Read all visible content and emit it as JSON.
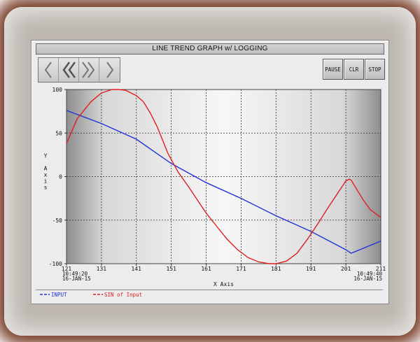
{
  "window": {
    "title": "LINE TREND GRAPH w/ LOGGING"
  },
  "nav": {
    "buttons": [
      {
        "icon": "chevron-left-icon"
      },
      {
        "icon": "double-chevron-left-icon"
      },
      {
        "icon": "double-chevron-right-icon"
      },
      {
        "icon": "chevron-right-icon"
      }
    ]
  },
  "controls": {
    "pause": "PAUSE",
    "clear": "CLR",
    "stop": "STOP"
  },
  "chart_data": {
    "type": "line",
    "xlabel": "X Axis",
    "ylabel": "Y Axis",
    "xlim": [
      121,
      211
    ],
    "ylim": [
      -100,
      100
    ],
    "x_ticks": [
      "121",
      "131",
      "141",
      "151",
      "161",
      "171",
      "181",
      "191",
      "201",
      "211"
    ],
    "y_ticks": [
      "100",
      "50",
      "0",
      "-50",
      "-100"
    ],
    "x_start_stamp": {
      "time": "10:49:20",
      "date": "16-JAN-15"
    },
    "x_end_stamp": {
      "time": "10:49:40",
      "date": "16-JAN-15"
    },
    "grid": true,
    "legend_position": "bottom-left",
    "series": [
      {
        "name": "INPUT",
        "color": "#2233d6",
        "x": [
          121,
          131,
          141,
          151,
          161,
          171,
          181,
          191,
          201,
          202.5,
          211
        ],
        "y": [
          76,
          61,
          43,
          15,
          -7,
          -25,
          -45,
          -63,
          -84,
          -88,
          -74
        ]
      },
      {
        "name": "SIN of Input",
        "color": "#e02020",
        "x": [
          121,
          124,
          128,
          131,
          134,
          136,
          138,
          141,
          143,
          145,
          147,
          150,
          153,
          156,
          159,
          161,
          164,
          167,
          170,
          173,
          176,
          179,
          181,
          184,
          187,
          190,
          193,
          196,
          199,
          201,
          202,
          202.5,
          204,
          206,
          208,
          211
        ],
        "y": [
          38,
          66,
          86,
          96,
          100,
          100,
          99,
          93,
          86,
          73,
          57,
          27,
          5,
          -12,
          -30,
          -42,
          -57,
          -72,
          -84,
          -93,
          -98,
          -100,
          -100,
          -97,
          -88,
          -72,
          -54,
          -35,
          -17,
          -5,
          -3,
          -4,
          -14,
          -27,
          -38,
          -47
        ]
      }
    ]
  }
}
